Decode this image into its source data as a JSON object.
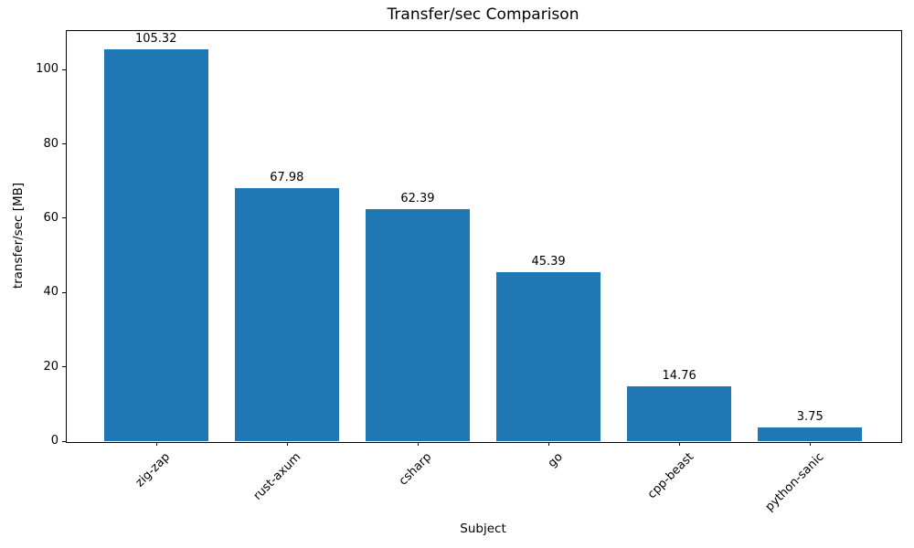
{
  "chart_data": {
    "type": "bar",
    "title": "Transfer/sec Comparison",
    "xlabel": "Subject",
    "ylabel": "transfer/sec [MB]",
    "categories": [
      "zig-zap",
      "rust-axum",
      "csharp",
      "go",
      "cpp-beast",
      "python-sanic"
    ],
    "values": [
      105.32,
      67.98,
      62.39,
      45.39,
      14.76,
      3.75
    ],
    "value_labels": [
      "105.32",
      "67.98",
      "62.39",
      "45.39",
      "14.76",
      "3.75"
    ],
    "yticks": [
      0,
      20,
      40,
      60,
      80,
      100
    ],
    "ylim": [
      0,
      110.6
    ],
    "x_tick_rotation": 45,
    "grid": false,
    "legend": null,
    "bar_color": "#1f77b4",
    "axis_color": "#000000",
    "text_color": "#000000",
    "background_color": "#ffffff"
  }
}
